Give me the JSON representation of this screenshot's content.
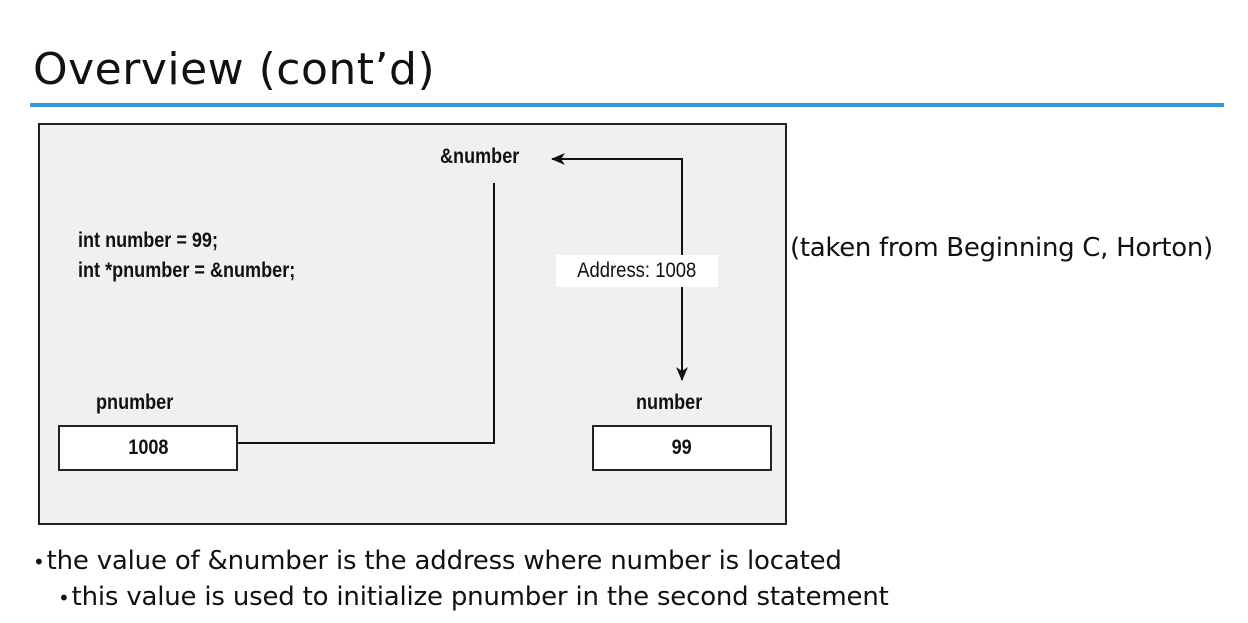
{
  "slide": {
    "title": "Overview (cont’d)",
    "accent_color": "#3399dd"
  },
  "figure": {
    "code_lines": [
      "int number = 99;",
      "int *pnumber = &number;"
    ],
    "address_of_label": "&number",
    "address_label": "Address: 1008",
    "pointer_var": {
      "name": "pnumber",
      "value": "1008"
    },
    "target_var": {
      "name": "number",
      "value": "99"
    }
  },
  "credit": "(taken from Beginning C, Horton)",
  "bullets": [
    {
      "level": 1,
      "text": "the value of &number is the address where number is located"
    },
    {
      "level": 2,
      "text": "this value is used to initialize pnumber in the second statement"
    }
  ]
}
